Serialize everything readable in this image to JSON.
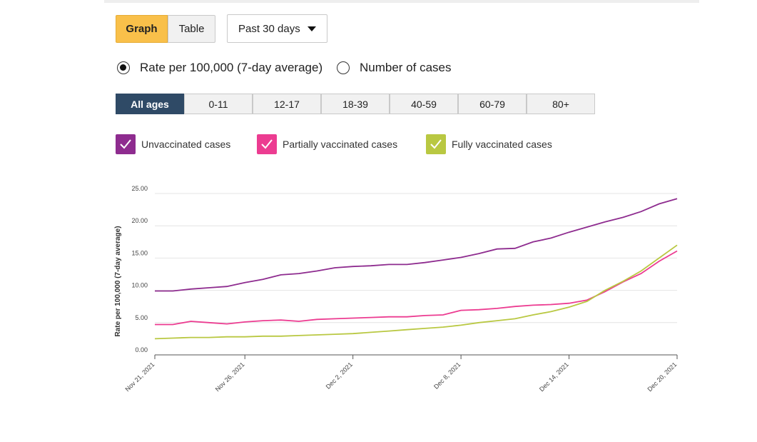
{
  "controls": {
    "graph_label": "Graph",
    "table_label": "Table",
    "period_label": "Past 30 days"
  },
  "measure": {
    "rate_label": "Rate per 100,000 (7-day average)",
    "count_label": "Number of cases",
    "selected": "rate"
  },
  "age_groups": {
    "items": [
      "All ages",
      "0-11",
      "12-17",
      "18-39",
      "40-59",
      "60-79",
      "80+"
    ],
    "active": "All ages"
  },
  "legend": {
    "unvax": "Unvaccinated cases",
    "partial": "Partially vaccinated cases",
    "full": "Fully vaccinated cases"
  },
  "colors": {
    "unvax": "#8e2c8f",
    "partial": "#ec3c91",
    "full": "#b9c842",
    "accent": "#f9c04a",
    "active_tab": "#2f4a66"
  },
  "chart_data": {
    "type": "line",
    "ylabel": "Rate per 100,000 (7-day average)",
    "ylim": [
      0,
      25
    ],
    "yticks": [
      "0.00",
      "5.00",
      "10.00",
      "15.00",
      "20.00",
      "25.00"
    ],
    "xticks": [
      "Nov 21, 2021",
      "Nov 26, 2021",
      "Dec 2, 2021",
      "Dec 8, 2021",
      "Dec 14, 2021",
      "Dec 20, 2021"
    ],
    "grid": true,
    "x": [
      "2021-11-21",
      "2021-11-22",
      "2021-11-23",
      "2021-11-24",
      "2021-11-25",
      "2021-11-26",
      "2021-11-27",
      "2021-11-28",
      "2021-11-29",
      "2021-11-30",
      "2021-12-01",
      "2021-12-02",
      "2021-12-03",
      "2021-12-04",
      "2021-12-05",
      "2021-12-06",
      "2021-12-07",
      "2021-12-08",
      "2021-12-09",
      "2021-12-10",
      "2021-12-11",
      "2021-12-12",
      "2021-12-13",
      "2021-12-14",
      "2021-12-15",
      "2021-12-16",
      "2021-12-17",
      "2021-12-18",
      "2021-12-19",
      "2021-12-20"
    ],
    "series": [
      {
        "name": "Unvaccinated cases",
        "color_key": "unvax",
        "values": [
          9.9,
          9.9,
          10.2,
          10.4,
          10.6,
          11.2,
          11.7,
          12.4,
          12.6,
          13.0,
          13.5,
          13.7,
          13.8,
          14.0,
          14.0,
          14.3,
          14.7,
          15.1,
          15.7,
          16.4,
          16.5,
          17.5,
          18.1,
          19.0,
          19.8,
          20.6,
          21.3,
          22.2,
          23.4,
          24.2
        ]
      },
      {
        "name": "Partially vaccinated cases",
        "color_key": "partial",
        "values": [
          4.7,
          4.7,
          5.2,
          5.0,
          4.8,
          5.1,
          5.3,
          5.4,
          5.2,
          5.5,
          5.6,
          5.7,
          5.8,
          5.9,
          5.9,
          6.1,
          6.2,
          6.9,
          7.0,
          7.2,
          7.5,
          7.7,
          7.8,
          8.0,
          8.5,
          9.8,
          11.3,
          12.6,
          14.5,
          16.1
        ]
      },
      {
        "name": "Fully vaccinated cases",
        "color_key": "full",
        "values": [
          2.5,
          2.6,
          2.7,
          2.7,
          2.8,
          2.8,
          2.9,
          2.9,
          3.0,
          3.1,
          3.2,
          3.3,
          3.5,
          3.7,
          3.9,
          4.1,
          4.3,
          4.6,
          5.0,
          5.3,
          5.6,
          6.2,
          6.7,
          7.4,
          8.3,
          10.0,
          11.4,
          13.0,
          15.0,
          17.0
        ]
      }
    ]
  }
}
